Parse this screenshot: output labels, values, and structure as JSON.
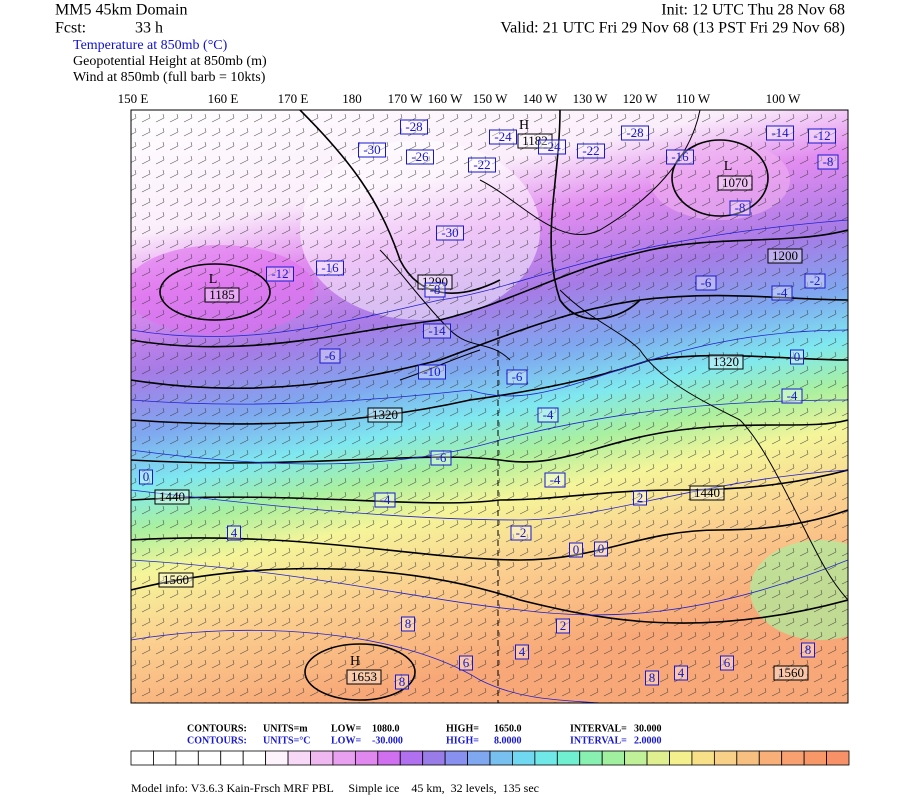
{
  "header": {
    "domain": "MM5 45km Domain",
    "fcst_label": "Fcst:",
    "fcst_value": "33 h",
    "init": "Init: 12 UTC Thu 28 Nov 68",
    "valid": "Valid: 21 UTC Fri 29 Nov 68 (13 PST Fri 29 Nov 68)",
    "fields": [
      "Temperature at 850mb (°C)",
      "Geopotential Height at 850mb (m)",
      "Wind at 850mb (full barb = 10kts)"
    ]
  },
  "longitudes": [
    "150 E",
    "160 E",
    "170 E",
    "180",
    "170 W",
    "160 W",
    "150 W",
    "140 W",
    "130 W",
    "120 W",
    "110 W",
    "100 W"
  ],
  "map": {
    "centers": [
      "L",
      "L",
      "H",
      "H"
    ],
    "height_labels": [
      "1185",
      "1290",
      "1320",
      "1320",
      "1440",
      "1440",
      "1560",
      "1560",
      "1653",
      "1182",
      "1070",
      "1200"
    ],
    "temperature_labels": [
      "-28",
      "-30",
      "-26",
      "-22",
      "-24",
      "-24",
      "-22",
      "-28",
      "-16",
      "-14",
      "-12",
      "-8",
      "-8",
      "-30",
      "-16",
      "-12",
      "-8",
      "-6",
      "-4",
      "-2",
      "-14",
      "-6",
      "-10",
      "-6",
      "0",
      "-4",
      "-4",
      "-6",
      "-4",
      "-4",
      "0",
      "4",
      "-2",
      "0",
      "0",
      "2",
      "8",
      "2",
      "4",
      "6",
      "8",
      "4",
      "8",
      "6",
      "8"
    ]
  },
  "legend": {
    "height": [
      "CONTOURS:",
      "UNITS=m",
      "LOW=",
      "1080.0",
      "HIGH=",
      "1650.0",
      "INTERVAL=",
      "30.000"
    ],
    "temperature": [
      "CONTOURS:",
      "UNITS=°C",
      "LOW=",
      "-30.000",
      "HIGH=",
      "8.0000",
      "INTERVAL=",
      "2.0000"
    ]
  },
  "footer": "Model info: V3.6.3 Kain-Frsch MRF PBL     Simple ice    45 km,  32 levels,  135 sec"
}
